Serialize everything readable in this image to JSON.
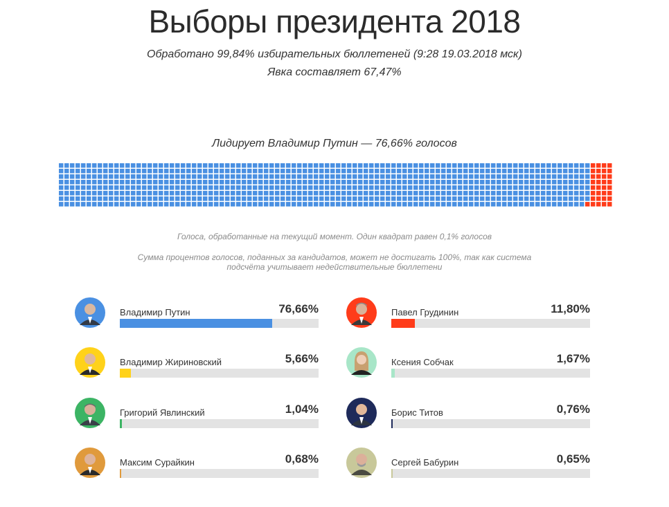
{
  "header": {
    "title": "Выборы президента 2018",
    "processed": "Обработано 99,84% избирательных бюллетеней (9:28 19.03.2018 мск)",
    "turnout": "Явка составляет 67,47%"
  },
  "waffle": {
    "leader_text": "Лидирует Владимир Путин — 76,66% голосов",
    "note1": "Голоса, обработанные на текущий момент. Один квадрат равен 0,1% голосов",
    "note2_line1": "Сумма процентов голосов, поданных за кандидатов, может не достигать 100%, так как система",
    "note2_line2": "подсчёта учитывает недействительные бюллетени"
  },
  "chart_data": {
    "type": "bar",
    "title": "Выборы президента 2018",
    "xlim": [
      0,
      100
    ],
    "categories": [
      "Владимир Путин",
      "Павел Грудинин",
      "Владимир Жириновский",
      "Ксения Собчак",
      "Григорий Явлинский",
      "Борис Титов",
      "Максим Сурайкин",
      "Сергей Бабурин"
    ],
    "values": [
      76.66,
      11.8,
      5.66,
      1.67,
      1.04,
      0.76,
      0.68,
      0.65
    ],
    "labels": [
      "76,66%",
      "11,80%",
      "5,66%",
      "1,67%",
      "1,04%",
      "0,76%",
      "0,68%",
      "0,65%"
    ],
    "colors": [
      "#4a90e2",
      "#ff3c1a",
      "#ffd21a",
      "#a8e6c8",
      "#3cb464",
      "#1e2a5a",
      "#e09a3c",
      "#c8c89a"
    ]
  },
  "candidates": [
    {
      "name": "Владимир Путин",
      "pct": "76,66%"
    },
    {
      "name": "Павел Грудинин",
      "pct": "11,80%"
    },
    {
      "name": "Владимир Жириновский",
      "pct": "5,66%"
    },
    {
      "name": "Ксения Собчак",
      "pct": "1,67%"
    },
    {
      "name": "Григорий Явлинский",
      "pct": "1,04%"
    },
    {
      "name": "Борис Титов",
      "pct": "0,76%"
    },
    {
      "name": "Максим Сурайкин",
      "pct": "0,68%"
    },
    {
      "name": "Сергей Бабурин",
      "pct": "0,65%"
    }
  ]
}
